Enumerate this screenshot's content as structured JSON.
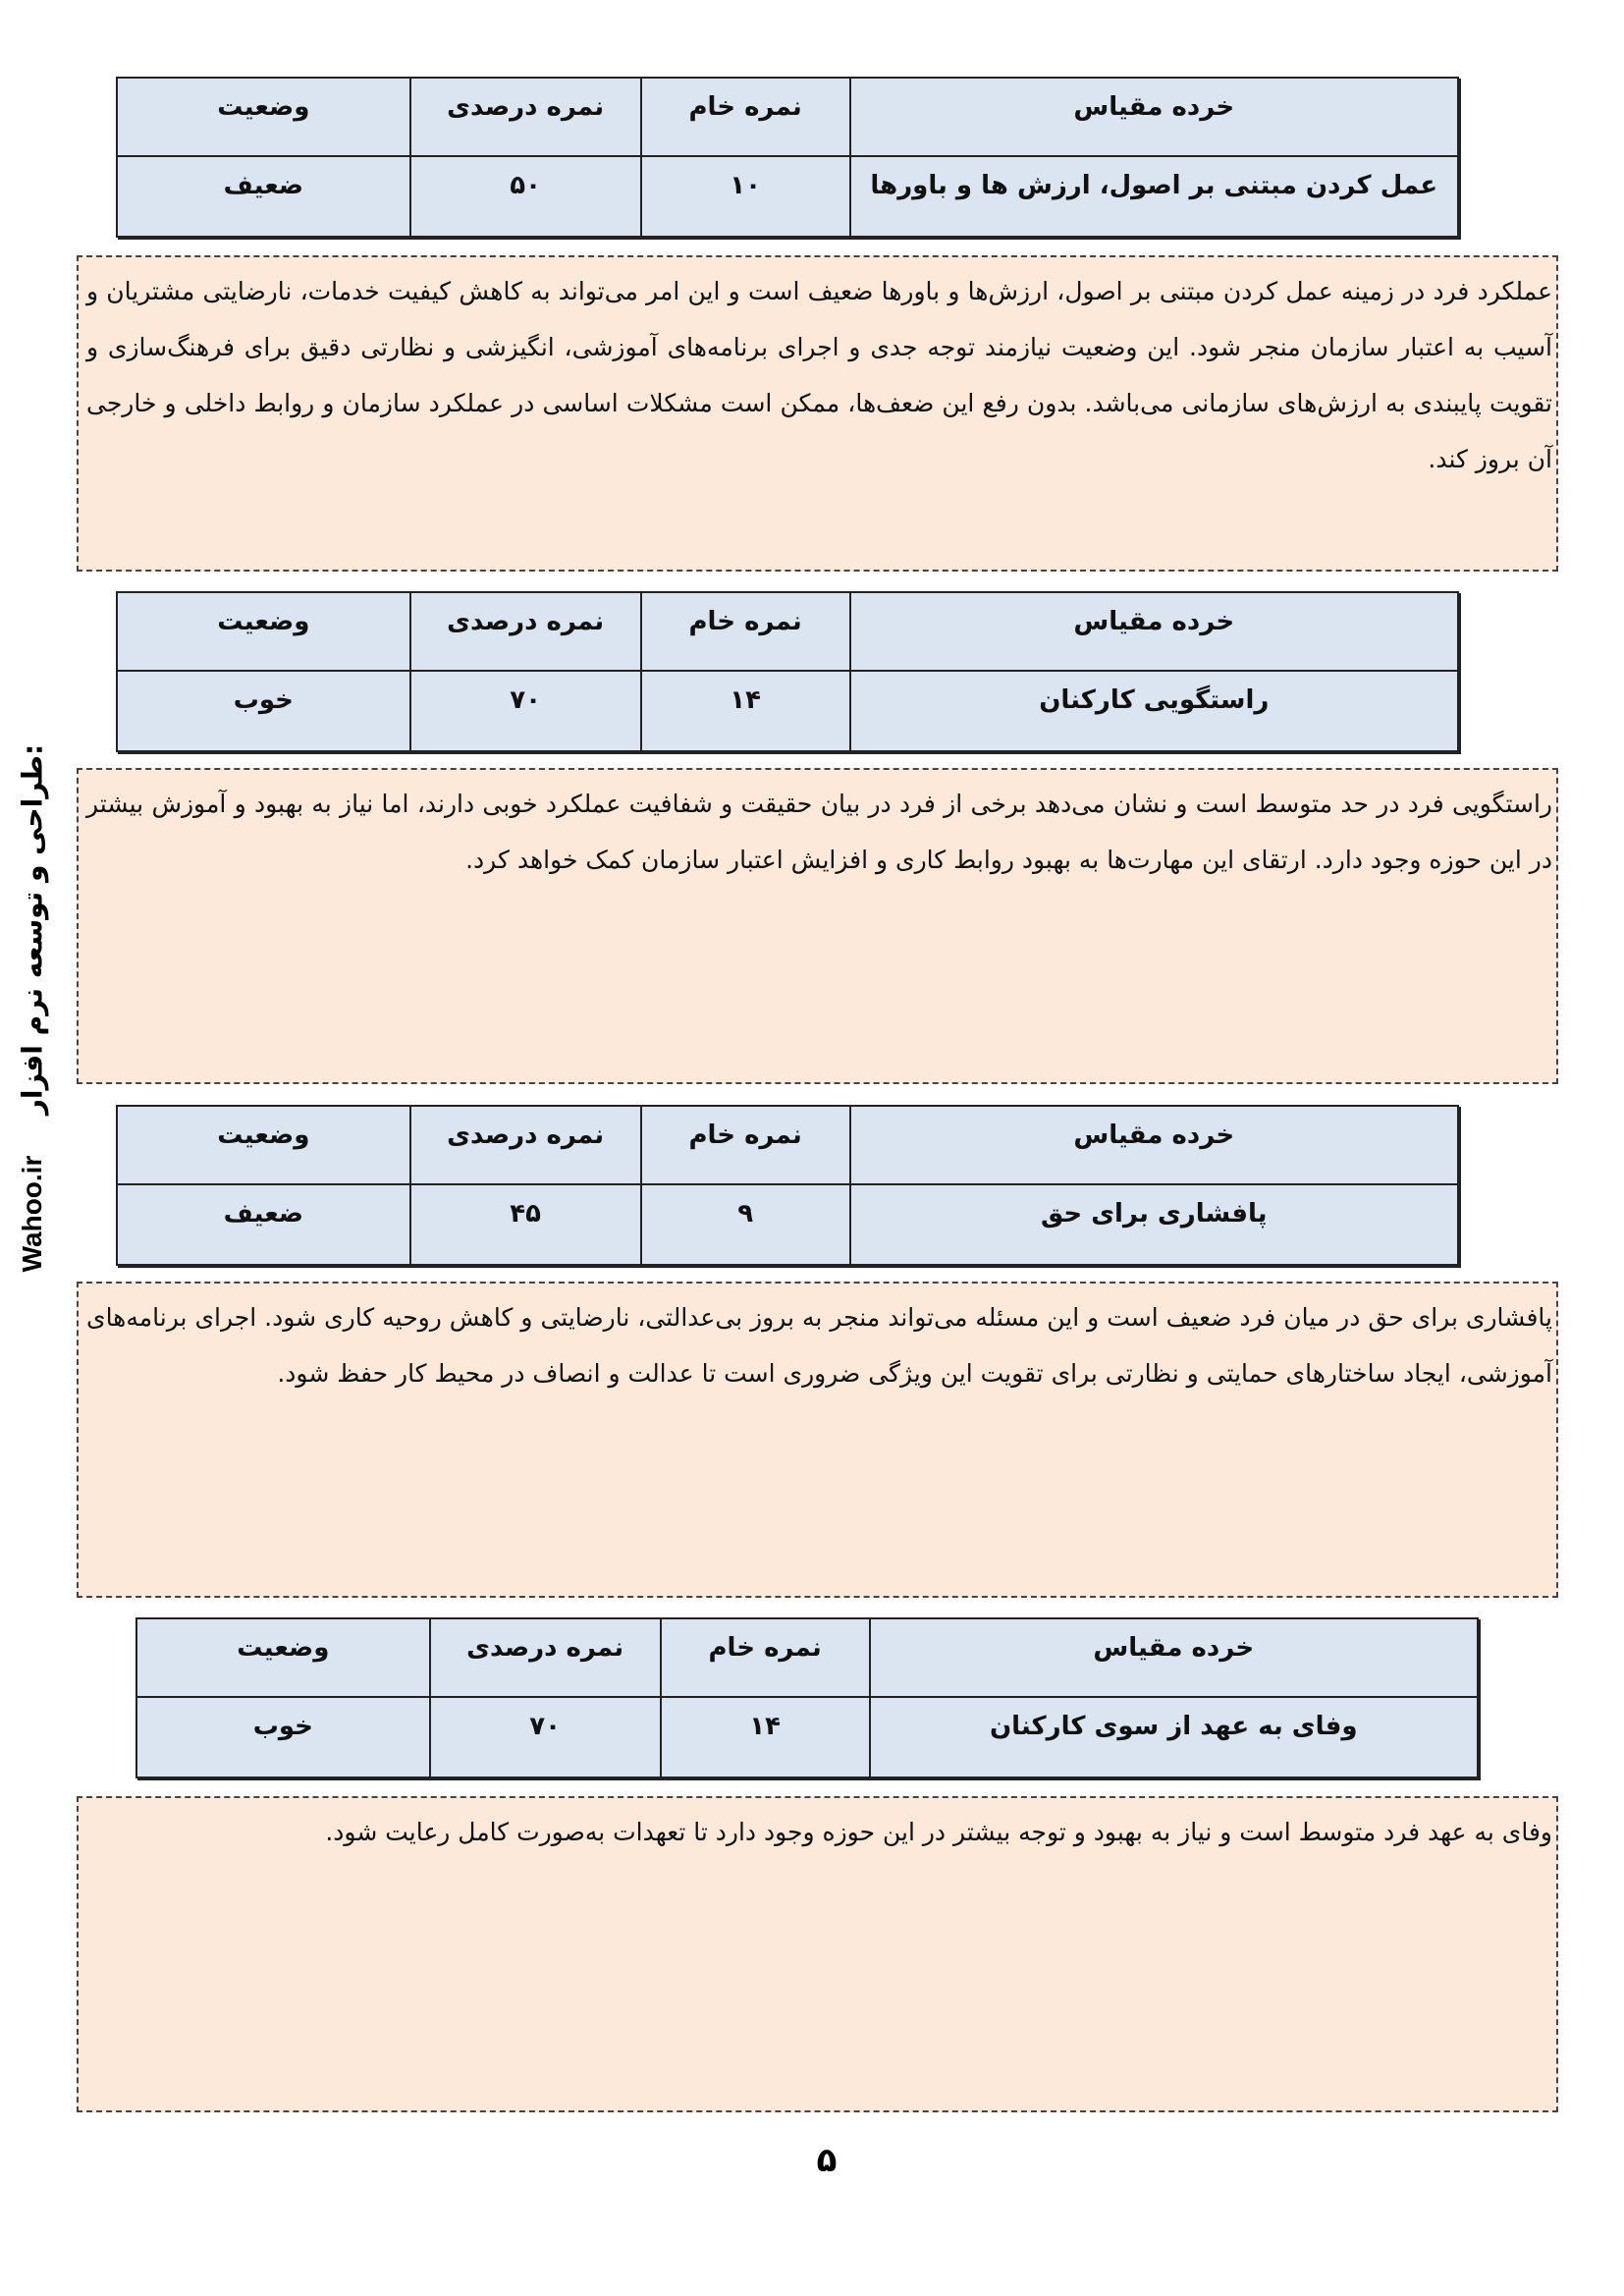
{
  "headers": {
    "subscale": "خرده مقیاس",
    "raw": "نمره خام",
    "percent": "نمره درصدی",
    "status": "وضعیت"
  },
  "sections": [
    {
      "subscale": "عمل کردن مبتنی بر اصول، ارزش ها و باورها",
      "raw": "۱۰",
      "percent": "۵۰",
      "status": "ضعیف",
      "text": "عملکرد فرد در زمینه عمل کردن مبتنی بر اصول، ارزش‌ها و باورها ضعیف است و این امر می‌تواند به کاهش کیفیت خدمات، نارضایتی مشتریان و آسیب به اعتبار سازمان منجر شود. این وضعیت نیازمند توجه جدی و اجرای برنامه‌های آموزشی، انگیزشی و نظارتی دقیق برای فرهنگ‌سازی و تقویت پایبندی به ارزش‌های سازمانی می‌باشد. بدون رفع این ضعف‌ها، ممکن است مشکلات اساسی در عملکرد سازمان و روابط داخلی و خارجی آن بروز کند."
    },
    {
      "subscale": "راستگویی کارکنان",
      "raw": "۱۴",
      "percent": "۷۰",
      "status": "خوب",
      "text": "راستگویی فرد در حد متوسط است و نشان می‌دهد برخی از فرد در بیان حقیقت و شفافیت عملکرد خوبی دارند، اما نیاز به بهبود و آموزش بیشتر در این حوزه وجود دارد. ارتقای این مهارت‌ها به بهبود روابط کاری و افزایش اعتبار سازمان کمک خواهد کرد."
    },
    {
      "subscale": "پافشاری برای حق",
      "raw": "۹",
      "percent": "۴۵",
      "status": "ضعیف",
      "text": "پافشاری برای حق در میان فرد ضعیف است و این مسئله می‌تواند منجر به بروز بی‌عدالتی، نارضایتی و کاهش روحیه کاری شود. اجرای برنامه‌های آموزشی، ایجاد ساختارهای حمایتی و نظارتی برای تقویت این ویژگی ضروری است تا عدالت و انصاف در محیط کار حفظ شود."
    },
    {
      "subscale": "وفای به عهد از سوی کارکنان",
      "raw": "۱۴",
      "percent": "۷۰",
      "status": "خوب",
      "text": "وفای به عهد فرد متوسط است و نیاز به بهبود و توجه بیشتر در این حوزه وجود دارد تا تعهدات به‌صورت کامل رعایت شود."
    }
  ],
  "sidebar": {
    "brand": "Wahoo.ir",
    "credit": "طراحی و توسعه نرم افزار:"
  },
  "page_number": "۵",
  "colors": {
    "table_bg": "#dbe5f1",
    "box_bg": "#fde9d9"
  }
}
